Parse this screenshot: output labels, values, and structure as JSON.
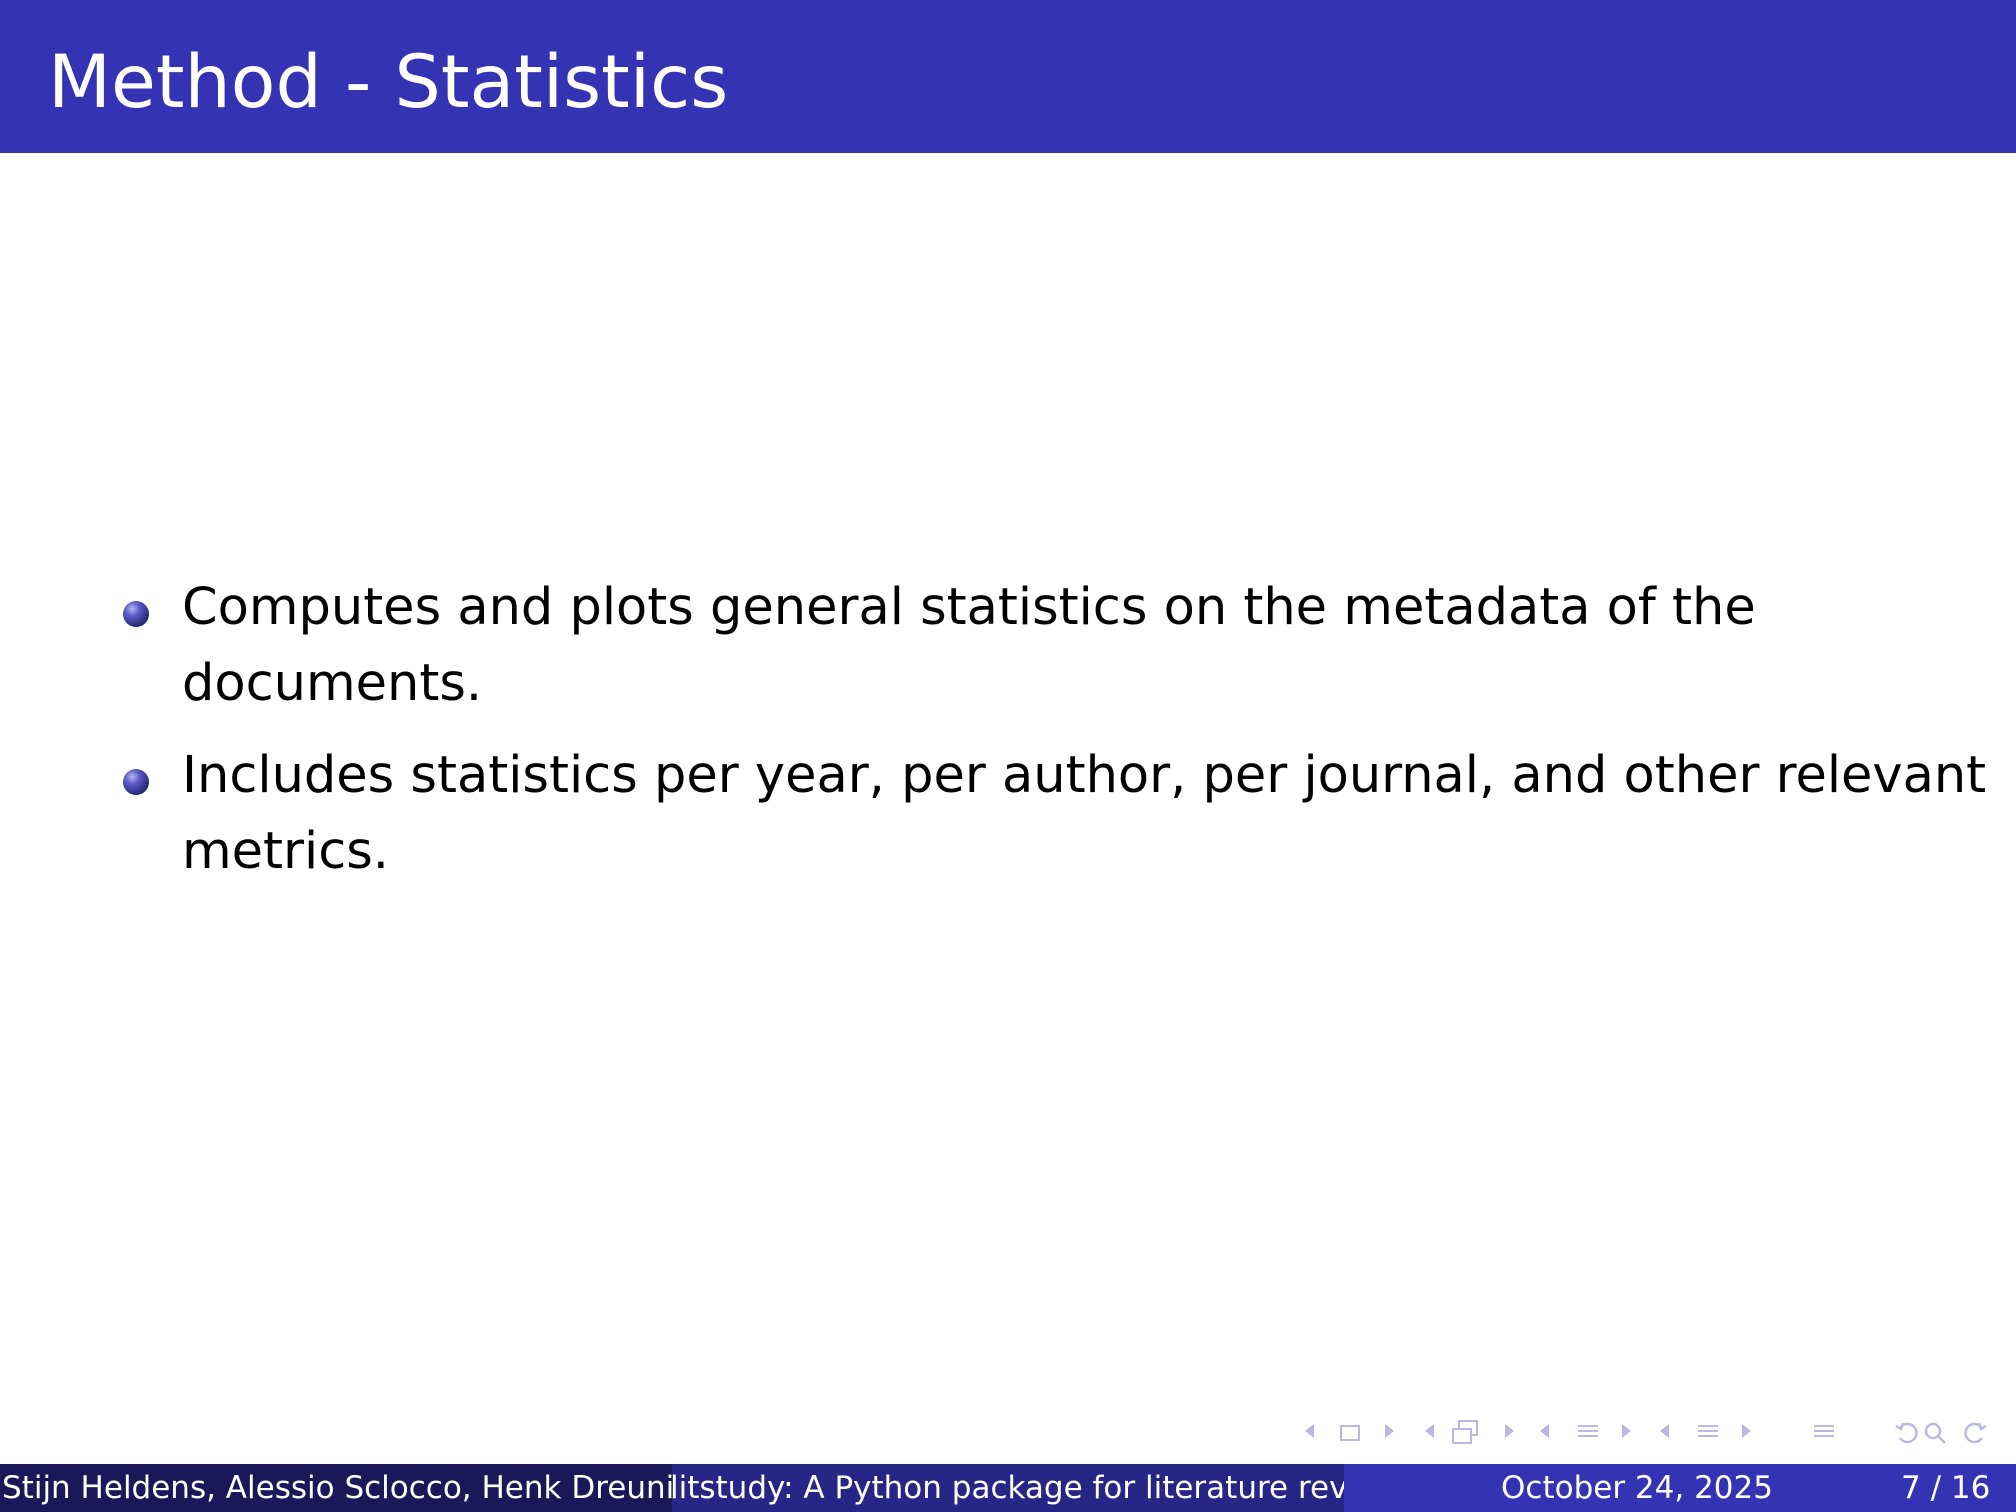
{
  "slide": {
    "title": "Method - Statistics",
    "bullets": [
      [
        "Computes and plots general statistics on the metadata of the",
        "documents."
      ],
      [
        "Includes statistics per year, per author, per journal, and other relevant",
        "metrics."
      ]
    ]
  },
  "footer": {
    "authors": "Stijn Heldens, Alessio Sclocco, Henk Dreuning",
    "short_title": "litstudy: A Python package for literature review",
    "date": "October 24, 2025",
    "page": "7 / 16"
  },
  "colors": {
    "header": "#3333b3",
    "footer_left": "#191959",
    "footer_mid": "#262686",
    "footer_right": "#3333b3",
    "nav_icons": "#b8b8e0"
  },
  "nav_icons": [
    "slide-prev-icon",
    "slide-icon",
    "slide-next-icon",
    "frame-prev-icon",
    "frame-icon",
    "frame-next-icon",
    "subsection-prev-icon",
    "subsection-icon",
    "subsection-next-icon",
    "section-prev-icon",
    "section-icon",
    "section-next-icon",
    "toc-icon",
    "back-icon",
    "search-icon",
    "forward-icon"
  ]
}
